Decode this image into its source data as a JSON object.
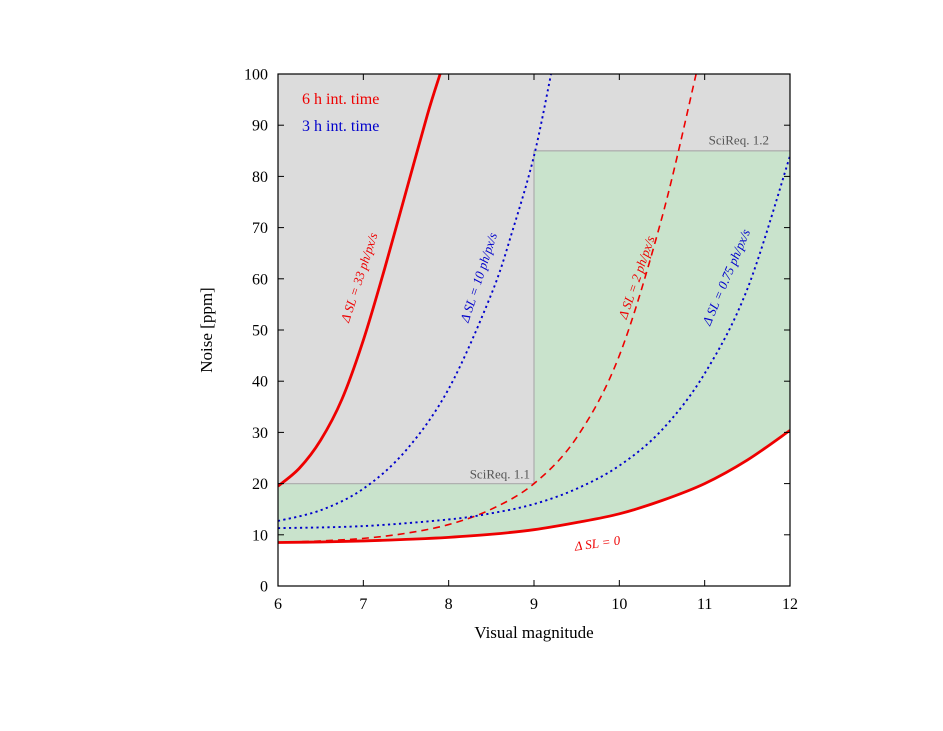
{
  "chart_data": {
    "type": "line",
    "xlabel": "Visual magnitude",
    "ylabel": "Noise [ppm]",
    "xlim": [
      6,
      12
    ],
    "ylim": [
      0,
      100
    ],
    "xticks": [
      "6",
      "7",
      "8",
      "9",
      "10",
      "11",
      "12"
    ],
    "yticks": [
      "0",
      "10",
      "20",
      "30",
      "40",
      "50",
      "60",
      "70",
      "80",
      "90",
      "100"
    ],
    "grid": false,
    "legend": {
      "placement": "top-left",
      "entries": [
        {
          "label": "6 h int. time",
          "color": "#ee0000"
        },
        {
          "label": "3 h int. time",
          "color": "#0000cc"
        }
      ]
    },
    "regions": [
      {
        "name": "SciReq. 1.1",
        "color": "#dcdcdc",
        "steps": [
          {
            "x_from": 6,
            "x_to": 9,
            "y": 20
          },
          {
            "x_from": 9,
            "x_to": 12,
            "y": 85
          }
        ],
        "fill": "above requirement"
      },
      {
        "name": "SciReq. 1.2",
        "color": "#c9e3cc",
        "fill": "between requirement and ΔSL = 0 curve"
      }
    ],
    "series": [
      {
        "name": "Δ SL = 0",
        "color": "#ee0000",
        "style": "solid",
        "x": [
          6,
          6.5,
          7,
          7.5,
          8,
          8.5,
          9,
          9.5,
          10,
          10.5,
          11,
          11.5,
          12
        ],
        "y": [
          8.5,
          8.6,
          8.8,
          9.1,
          9.5,
          10.1,
          11.0,
          12.4,
          14.1,
          16.7,
          20.0,
          24.6,
          30.4
        ]
      },
      {
        "name": "Δ SL = 33 ph/px/s",
        "color": "#ee0000",
        "style": "solid",
        "x": [
          6,
          6.25,
          6.5,
          6.75,
          7,
          7.25,
          7.5,
          7.75,
          7.9
        ],
        "y": [
          19.5,
          23.0,
          28.5,
          36.5,
          48.0,
          62.0,
          77.0,
          92.0,
          100
        ]
      },
      {
        "name": "Δ SL = 10 ph/px/s",
        "color": "#0000cc",
        "style": "dotted",
        "x": [
          6,
          6.5,
          7,
          7.5,
          8,
          8.5,
          8.75,
          9,
          9.2
        ],
        "y": [
          12.7,
          14.8,
          19.0,
          26.5,
          38.5,
          57.0,
          69.5,
          84.0,
          100
        ]
      },
      {
        "name": "Δ SL = 2 ph/px/s",
        "color": "#ee0000",
        "style": "dashed",
        "x": [
          6,
          6.5,
          7,
          7.5,
          8,
          8.5,
          9,
          9.5,
          10,
          10.5,
          10.9
        ],
        "y": [
          8.5,
          8.8,
          9.3,
          10.3,
          12.0,
          15.0,
          20.0,
          29.0,
          45.0,
          72.0,
          100
        ]
      },
      {
        "name": "Δ SL = 0.75 ph/px/s",
        "color": "#0000cc",
        "style": "dotted",
        "x": [
          6,
          7,
          8,
          8.5,
          9,
          9.5,
          10,
          10.5,
          11,
          11.5,
          12
        ],
        "y": [
          11.3,
          11.7,
          13.0,
          14.2,
          16.0,
          19.0,
          23.5,
          30.5,
          41.5,
          58.0,
          84.0
        ]
      }
    ],
    "annotations": [
      {
        "text": "SciReq. 1.1",
        "x": 8.6,
        "y": 21
      },
      {
        "text": "SciReq. 1.2",
        "x": 11.4,
        "y": 86.2
      },
      {
        "text": "Δ SL = 33 ph/px/s",
        "x": 7.0,
        "y": 60,
        "color": "#ee0000"
      },
      {
        "text": "Δ SL = 10 ph/px/s",
        "x": 8.4,
        "y": 60,
        "color": "#0000cc"
      },
      {
        "text": "Δ SL = 2 ph/px/s",
        "x": 10.25,
        "y": 60,
        "color": "#ee0000"
      },
      {
        "text": "Δ SL = 0.75 ph/px/s",
        "x": 11.3,
        "y": 60,
        "color": "#0000cc"
      },
      {
        "text": "Δ SL = 0",
        "x": 9.75,
        "y": 7.5,
        "color": "#ee0000"
      }
    ]
  }
}
